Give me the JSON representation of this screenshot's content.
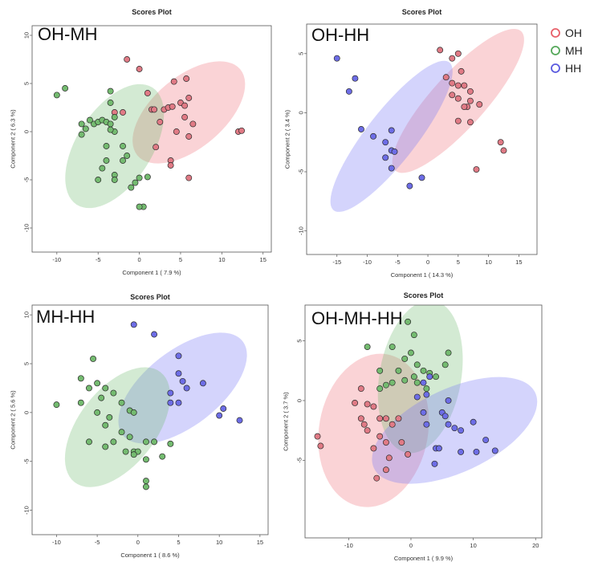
{
  "legend": [
    {
      "label": "OH",
      "color": "#e8606a"
    },
    {
      "label": "MH",
      "color": "#55a85a"
    },
    {
      "label": "HH",
      "color": "#5a5adf"
    }
  ],
  "chart_data": [
    {
      "type": "scatter",
      "title": "Scores Plot",
      "tag": "OH-MH",
      "xlabel": "Component 1 ( 7.9 %)",
      "ylabel": "Component 2 ( 6.3 %)",
      "xlim": [
        -13,
        16
      ],
      "ylim": [
        -12.5,
        11
      ],
      "xticks": [
        -10,
        -5,
        0,
        5,
        10,
        15
      ],
      "yticks": [
        -10,
        -5,
        0,
        5,
        10
      ],
      "ellipses": [
        {
          "group": "OH",
          "cx": 6,
          "cy": 2,
          "rx": 7.5,
          "ry": 4,
          "angle": -40
        },
        {
          "group": "MH",
          "cx": -3,
          "cy": -1.5,
          "rx": 7.8,
          "ry": 4.2,
          "angle": -57
        }
      ],
      "series": [
        {
          "name": "OH",
          "points": [
            [
              -1.5,
              7.5
            ],
            [
              0,
              6.5
            ],
            [
              1,
              4
            ],
            [
              1.5,
              2.3
            ],
            [
              1.8,
              2.3
            ],
            [
              2.5,
              1
            ],
            [
              3,
              2.3
            ],
            [
              3.5,
              2.5
            ],
            [
              4,
              2.6
            ],
            [
              4.2,
              5.2
            ],
            [
              4.5,
              0
            ],
            [
              5,
              3
            ],
            [
              5.5,
              2.7
            ],
            [
              5.7,
              5.5
            ],
            [
              6,
              3.5
            ],
            [
              5.5,
              1.5
            ],
            [
              6,
              -0.5
            ],
            [
              6.5,
              0.8
            ],
            [
              2,
              -1.6
            ],
            [
              3.8,
              -3
            ],
            [
              3.8,
              -3.5
            ],
            [
              6,
              -4.8
            ],
            [
              12,
              0
            ],
            [
              12.4,
              0.1
            ],
            [
              -2,
              2
            ],
            [
              -3,
              2
            ]
          ]
        },
        {
          "name": "MH",
          "points": [
            [
              -10,
              3.8
            ],
            [
              -9,
              4.5
            ],
            [
              -7,
              0.8
            ],
            [
              -6.5,
              0.3
            ],
            [
              -6,
              1.2
            ],
            [
              -5.5,
              0.8
            ],
            [
              -5,
              1
            ],
            [
              -4.5,
              1.2
            ],
            [
              -4,
              1
            ],
            [
              -3.5,
              0.8
            ],
            [
              -3,
              1.5
            ],
            [
              -3.5,
              3
            ],
            [
              -3.5,
              4.2
            ],
            [
              -7,
              -0.3
            ],
            [
              -4,
              -1.5
            ],
            [
              -2,
              -1.5
            ],
            [
              -4,
              -3
            ],
            [
              -4.5,
              -3.8
            ],
            [
              -3,
              -4.5
            ],
            [
              -2,
              -3
            ],
            [
              -1.5,
              -2.5
            ],
            [
              -5,
              -5
            ],
            [
              -3,
              -5
            ],
            [
              -1,
              -5.8
            ],
            [
              -0.5,
              -5.3
            ],
            [
              0,
              -4.8
            ],
            [
              0.5,
              -7.8
            ],
            [
              1,
              -4.7
            ],
            [
              0,
              -7.8
            ],
            [
              -3,
              0
            ],
            [
              -3.5,
              0.2
            ]
          ]
        }
      ]
    },
    {
      "type": "scatter",
      "title": "Scores Plot",
      "tag": "OH-HH",
      "xlabel": "Component 1 ( 14.3 %)",
      "ylabel": "Component 2 ( 3.4 %)",
      "xlim": [
        -20,
        18
      ],
      "ylim": [
        -12,
        7.5
      ],
      "xticks": [
        -15,
        -10,
        -5,
        0,
        5,
        10,
        15
      ],
      "yticks": [
        -10,
        -5,
        0,
        5
      ],
      "ellipses": [
        {
          "group": "OH",
          "cx": 5,
          "cy": 1,
          "rx": 10.5,
          "ry": 3,
          "angle": -48
        },
        {
          "group": "HH",
          "cx": -6,
          "cy": -2,
          "rx": 10.5,
          "ry": 2.8,
          "angle": -52
        }
      ],
      "series": [
        {
          "name": "OH",
          "points": [
            [
              2,
              5.3
            ],
            [
              4,
              4.6
            ],
            [
              5,
              5
            ],
            [
              5.5,
              3.5
            ],
            [
              3,
              3
            ],
            [
              4,
              2.5
            ],
            [
              5,
              2.3
            ],
            [
              6,
              2.3
            ],
            [
              7,
              1.8
            ],
            [
              4,
              1.5
            ],
            [
              5,
              1.2
            ],
            [
              6.5,
              0.5
            ],
            [
              7,
              1
            ],
            [
              8.5,
              0.7
            ],
            [
              5,
              -0.7
            ],
            [
              7,
              -0.8
            ],
            [
              12,
              -2.5
            ],
            [
              12.5,
              -3.2
            ],
            [
              8,
              -4.8
            ],
            [
              6,
              0.5
            ]
          ]
        },
        {
          "name": "HH",
          "points": [
            [
              -15,
              4.6
            ],
            [
              -13,
              1.8
            ],
            [
              -12,
              2.9
            ],
            [
              -11,
              -1.4
            ],
            [
              -9,
              -2
            ],
            [
              -7,
              -2.5
            ],
            [
              -6,
              -1.5
            ],
            [
              -6,
              -3.2
            ],
            [
              -5.5,
              -3.3
            ],
            [
              -7,
              -3.8
            ],
            [
              -6,
              -4.7
            ],
            [
              -3,
              -6.2
            ],
            [
              -1,
              -5.5
            ]
          ]
        }
      ]
    },
    {
      "type": "scatter",
      "title": "Scores Plot",
      "tag": "MH-HH",
      "xlabel": "Component 1 ( 8.6 %)",
      "ylabel": "Component 2 ( 5.6 %)",
      "xlim": [
        -13,
        16
      ],
      "ylim": [
        -12.5,
        11
      ],
      "xticks": [
        -10,
        -5,
        0,
        5,
        10,
        15
      ],
      "yticks": [
        -10,
        -5,
        0,
        5,
        10
      ],
      "ellipses": [
        {
          "group": "HH",
          "cx": 5.5,
          "cy": 2.5,
          "rx": 8.5,
          "ry": 4.2,
          "angle": -38
        },
        {
          "group": "MH",
          "cx": -2.5,
          "cy": -1.5,
          "rx": 7.8,
          "ry": 4.3,
          "angle": -52
        }
      ],
      "series": [
        {
          "name": "HH",
          "points": [
            [
              -0.5,
              9
            ],
            [
              2,
              8
            ],
            [
              5,
              5.8
            ],
            [
              5,
              4
            ],
            [
              5.5,
              3.2
            ],
            [
              6,
              2.5
            ],
            [
              4,
              2
            ],
            [
              5,
              1
            ],
            [
              8,
              3
            ],
            [
              4,
              1
            ],
            [
              10,
              -0.3
            ],
            [
              10.5,
              0.4
            ],
            [
              12.5,
              -0.8
            ]
          ]
        },
        {
          "name": "MH",
          "points": [
            [
              -10,
              0.8
            ],
            [
              -5.5,
              5.5
            ],
            [
              -7,
              3.5
            ],
            [
              -6,
              2.5
            ],
            [
              -5,
              3
            ],
            [
              -4,
              2.5
            ],
            [
              -3,
              2
            ],
            [
              -4.5,
              1.5
            ],
            [
              -2,
              1
            ],
            [
              -7,
              1
            ],
            [
              -5,
              0
            ],
            [
              -3.5,
              -0.5
            ],
            [
              -4,
              -1.3
            ],
            [
              -1,
              0.2
            ],
            [
              -0.5,
              0
            ],
            [
              -2,
              -2
            ],
            [
              -1,
              -2.5
            ],
            [
              -3,
              -3
            ],
            [
              -4,
              -3.5
            ],
            [
              -1.5,
              -4
            ],
            [
              -0.5,
              -4
            ],
            [
              0,
              -4
            ],
            [
              -0.5,
              -4.3
            ],
            [
              1,
              -3
            ],
            [
              1,
              -4.8
            ],
            [
              2,
              -3
            ],
            [
              3,
              -4.5
            ],
            [
              4,
              -3.2
            ],
            [
              1,
              -7
            ],
            [
              1,
              -7.6
            ],
            [
              -6,
              -3
            ]
          ]
        }
      ]
    },
    {
      "type": "scatter",
      "title": "Scores Plot",
      "tag": "OH-MH-HH",
      "xlabel": "Component 1 ( 9.9 %)",
      "ylabel": "Component 2 ( 3.7 %)",
      "xlim": [
        -17,
        21
      ],
      "ylim": [
        -11.5,
        8
      ],
      "xticks": [
        -10,
        0,
        10,
        20
      ],
      "yticks": [
        -5,
        0,
        5
      ],
      "ellipses": [
        {
          "group": "OH",
          "cx": -6,
          "cy": -2.5,
          "rx": 8.5,
          "ry": 6,
          "angle": -80
        },
        {
          "group": "MH",
          "cx": 1.5,
          "cy": 2,
          "rx": 8.5,
          "ry": 4.5,
          "angle": -80
        },
        {
          "group": "HH",
          "cx": 7,
          "cy": -2.5,
          "rx": 9.8,
          "ry": 4.6,
          "angle": -25
        }
      ],
      "series": [
        {
          "name": "OH",
          "points": [
            [
              -15,
              -3
            ],
            [
              -14.5,
              -3.8
            ],
            [
              -8,
              1
            ],
            [
              -9,
              -0.2
            ],
            [
              -8,
              -1.5
            ],
            [
              -7,
              -0.3
            ],
            [
              -6,
              -0.5
            ],
            [
              -5,
              -1.5
            ],
            [
              -4,
              -1.5
            ],
            [
              -7,
              -2.5
            ],
            [
              -5,
              -3
            ],
            [
              -3,
              -2
            ],
            [
              -2,
              -1.5
            ],
            [
              -4,
              -3.5
            ],
            [
              -3.5,
              -4.8
            ],
            [
              -6,
              -4
            ],
            [
              -1.5,
              -3.5
            ],
            [
              -0.5,
              -4.5
            ],
            [
              -4,
              -5.8
            ],
            [
              -5.5,
              -6.5
            ],
            [
              -7.5,
              -2
            ]
          ]
        },
        {
          "name": "MH",
          "points": [
            [
              -0.5,
              6.6
            ],
            [
              0.5,
              5.5
            ],
            [
              -3,
              4.5
            ],
            [
              -7,
              4.5
            ],
            [
              -1,
              3.5
            ],
            [
              0,
              4
            ],
            [
              1,
              3
            ],
            [
              2,
              2.5
            ],
            [
              -2,
              2.5
            ],
            [
              -5,
              2.5
            ],
            [
              0.5,
              2
            ],
            [
              3,
              2.3
            ],
            [
              4,
              2
            ],
            [
              5.5,
              3
            ],
            [
              6,
              4
            ],
            [
              1,
              1.5
            ],
            [
              -1,
              1.7
            ],
            [
              -3,
              1.5
            ],
            [
              -4,
              1.3
            ],
            [
              2.5,
              1
            ],
            [
              -5,
              1
            ]
          ]
        },
        {
          "name": "HH",
          "points": [
            [
              2,
              1.5
            ],
            [
              3,
              2
            ],
            [
              2.5,
              0.5
            ],
            [
              2,
              -1
            ],
            [
              2.5,
              -2
            ],
            [
              5,
              -1
            ],
            [
              5.5,
              -1.3
            ],
            [
              6,
              -2
            ],
            [
              7,
              -2.3
            ],
            [
              8,
              -2.5
            ],
            [
              10,
              -1.8
            ],
            [
              10.5,
              -4.3
            ],
            [
              12,
              -3.3
            ],
            [
              13.5,
              -4.2
            ],
            [
              8,
              -4.3
            ],
            [
              4,
              -4
            ],
            [
              4.5,
              -4
            ],
            [
              3.8,
              -5.3
            ],
            [
              6,
              0
            ],
            [
              1,
              0.3
            ]
          ]
        }
      ]
    }
  ]
}
